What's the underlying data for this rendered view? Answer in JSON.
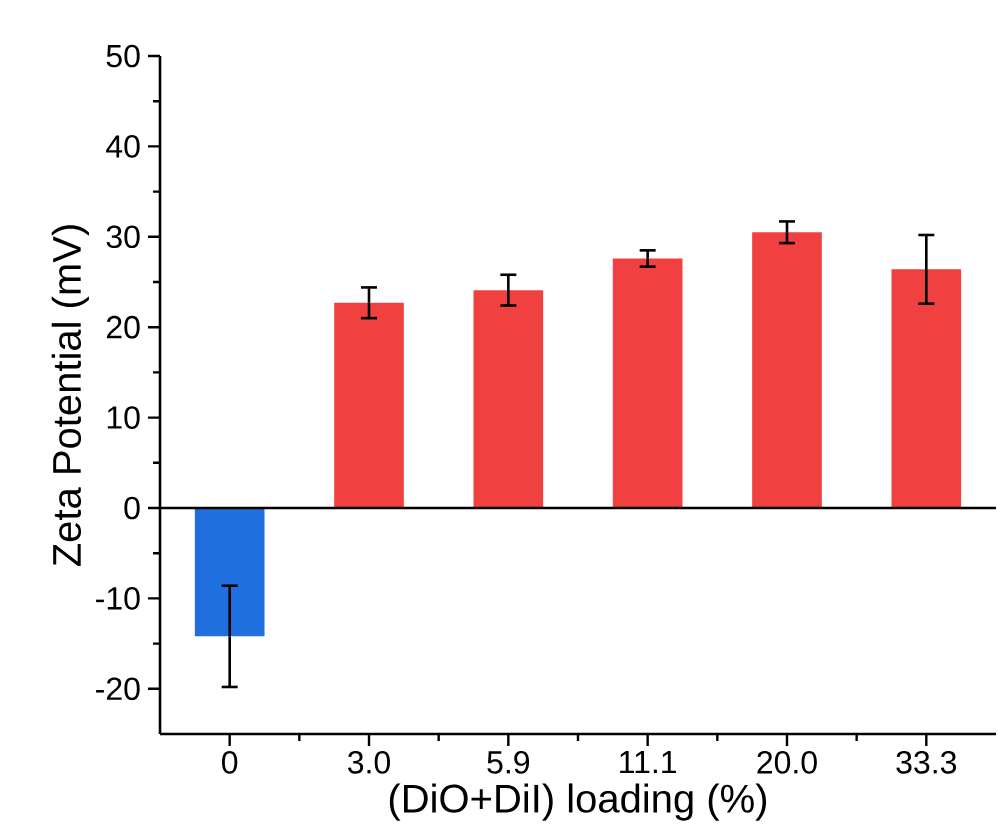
{
  "chart_data": {
    "type": "bar",
    "xlabel": "(DiO+DiI) loading (%)",
    "ylabel": "Zeta Potential (mV)",
    "categories": [
      "0",
      "3.0",
      "5.9",
      "11.1",
      "20.0",
      "33.3"
    ],
    "values": [
      -14.2,
      22.7,
      24.1,
      27.6,
      30.5,
      26.4
    ],
    "colors": [
      "#1f6fde",
      "#f04040",
      "#f04040",
      "#f04040",
      "#f04040",
      "#f04040"
    ],
    "errors": [
      5.6,
      1.7,
      1.7,
      0.9,
      1.2,
      3.8
    ],
    "ylim": [
      -25,
      50
    ],
    "yticks": [
      -20,
      -10,
      0,
      10,
      20,
      30,
      40,
      50
    ]
  }
}
